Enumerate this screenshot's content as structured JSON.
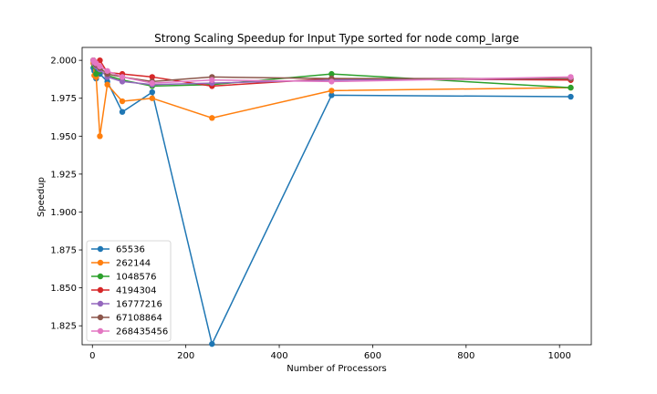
{
  "chart_data": {
    "type": "line",
    "title": "Strong Scaling Speedup for Input Type sorted for node comp_large",
    "xlabel": "Number of Processors",
    "ylabel": "Speedup",
    "xlim": [
      -22,
      1068
    ],
    "ylim": [
      1.8125,
      2.0085
    ],
    "xticks": [
      0,
      200,
      400,
      600,
      800,
      1000
    ],
    "xtick_labels": [
      "0",
      "200",
      "400",
      "600",
      "800",
      "1000"
    ],
    "yticks": [
      1.825,
      1.85,
      1.875,
      1.9,
      1.925,
      1.95,
      1.975,
      2.0
    ],
    "ytick_labels": [
      "1.825",
      "1.850",
      "1.875",
      "1.900",
      "1.925",
      "1.950",
      "1.975",
      "2.000"
    ],
    "grid": false,
    "legend_position": "lower-left",
    "x": [
      2,
      4,
      8,
      16,
      32,
      64,
      128,
      256,
      512,
      1024
    ],
    "series": [
      {
        "name": "65536",
        "color": "#1f77b4",
        "values": [
          1.995,
          1.993,
          1.988,
          1.991,
          1.986,
          1.966,
          1.979,
          1.813,
          1.977,
          1.976
        ]
      },
      {
        "name": "262144",
        "color": "#ff7f0e",
        "values": [
          1.998,
          1.99,
          1.989,
          1.95,
          1.984,
          1.973,
          1.975,
          1.962,
          1.98,
          1.982
        ]
      },
      {
        "name": "1048576",
        "color": "#2ca02c",
        "values": [
          2.0,
          1.996,
          1.991,
          1.993,
          1.99,
          1.987,
          1.983,
          1.984,
          1.991,
          1.982
        ]
      },
      {
        "name": "4194304",
        "color": "#d62728",
        "values": [
          2.0,
          1.999,
          1.998,
          2.0,
          1.992,
          1.991,
          1.989,
          1.983,
          1.988,
          1.987
        ]
      },
      {
        "name": "16777216",
        "color": "#9467bd",
        "values": [
          2.0,
          1.998,
          1.996,
          1.994,
          1.989,
          1.986,
          1.984,
          1.985,
          1.987,
          1.988
        ]
      },
      {
        "name": "67108864",
        "color": "#8c564b",
        "values": [
          2.0,
          1.999,
          1.997,
          1.995,
          1.991,
          1.989,
          1.986,
          1.989,
          1.988,
          1.988
        ]
      },
      {
        "name": "268435456",
        "color": "#e377c2",
        "values": [
          2.0,
          1.999,
          1.998,
          1.996,
          1.993,
          1.989,
          1.985,
          1.987,
          1.986,
          1.989
        ]
      }
    ]
  }
}
